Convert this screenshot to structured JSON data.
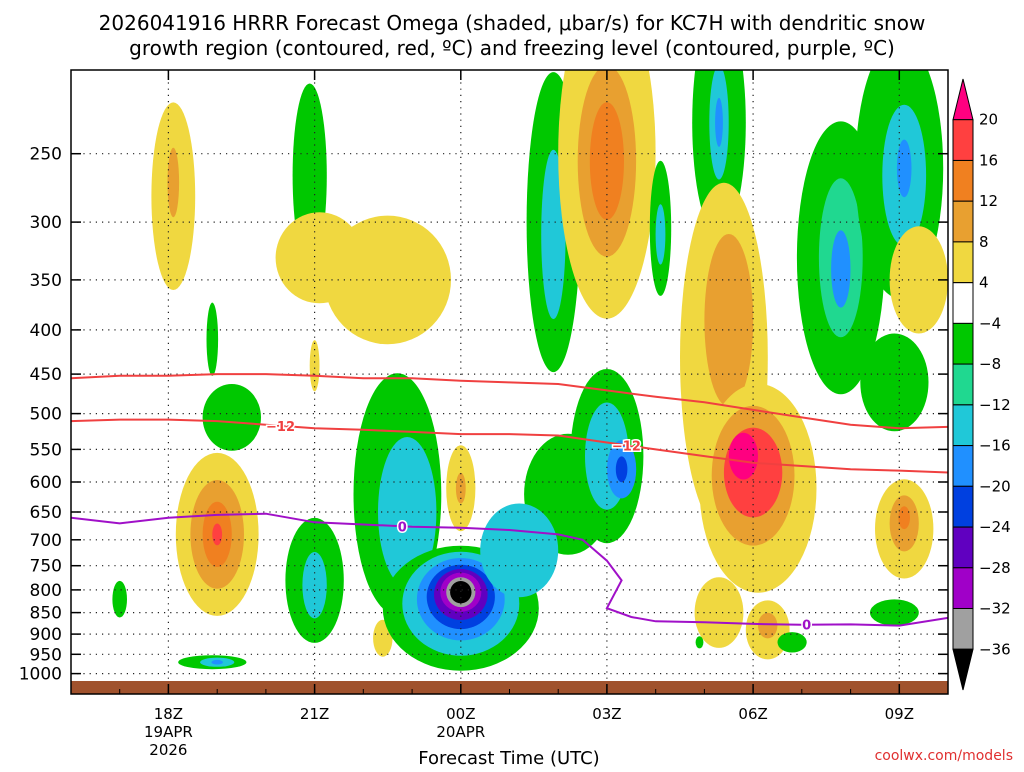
{
  "chart_data": {
    "type": "contour",
    "title_line1": "2026041916 HRRR Forecast Omega (shaded, μbar/s) for KC7H with dendritic snow",
    "title_line2": "growth region (contoured, red, ºC) and freezing level (contoured, purple, ºC)",
    "xlabel": "Forecast Time (UTC)",
    "credit": "coolwx.com/models",
    "x_ticks": [
      {
        "hour": 2,
        "label": "18Z",
        "sub1": "19APR",
        "sub2": "2026"
      },
      {
        "hour": 5,
        "label": "21Z",
        "sub1": "",
        "sub2": ""
      },
      {
        "hour": 8,
        "label": "00Z",
        "sub1": "20APR",
        "sub2": ""
      },
      {
        "hour": 11,
        "label": "03Z",
        "sub1": "",
        "sub2": ""
      },
      {
        "hour": 14,
        "label": "06Z",
        "sub1": "",
        "sub2": ""
      },
      {
        "hour": 17,
        "label": "09Z",
        "sub1": "",
        "sub2": ""
      }
    ],
    "x_range_hours": [
      0,
      18
    ],
    "y_levels_hpa": [
      250,
      300,
      350,
      400,
      450,
      500,
      550,
      600,
      650,
      700,
      750,
      800,
      850,
      900,
      950,
      1000
    ],
    "y_range_hpa": [
      200,
      1020
    ],
    "colorbar": {
      "labels": [
        "20",
        "16",
        "12",
        "8",
        "4",
        "−4",
        "−8",
        "−12",
        "−16",
        "−20",
        "−24",
        "−28",
        "−32",
        "−36"
      ],
      "colors": [
        "#ff0080",
        "#ff4040",
        "#f08020",
        "#e8a030",
        "#f0d840",
        "#ffffff",
        "#00c800",
        "#20d890",
        "#20c8d8",
        "#2090ff",
        "#0040e0",
        "#6000c0",
        "#a000c8",
        "#a0a0a0",
        "#000000"
      ]
    },
    "contours": [
      {
        "name": "dendritic-zone-top",
        "value": -18,
        "color": "#f04040",
        "points": [
          [
            0,
            455
          ],
          [
            1,
            452
          ],
          [
            2,
            452
          ],
          [
            3,
            450
          ],
          [
            4,
            450
          ],
          [
            5,
            452
          ],
          [
            6,
            455
          ],
          [
            7,
            455
          ],
          [
            8,
            458
          ],
          [
            9,
            460
          ],
          [
            10,
            462
          ],
          [
            11,
            470
          ],
          [
            12,
            478
          ],
          [
            13,
            485
          ],
          [
            14,
            495
          ],
          [
            15,
            505
          ],
          [
            16,
            515
          ],
          [
            17,
            520
          ],
          [
            18,
            518
          ]
        ]
      },
      {
        "name": "dendritic-zone-bottom",
        "value": -12,
        "color": "#f04040",
        "label": "−12",
        "points": [
          [
            0,
            510
          ],
          [
            1,
            508
          ],
          [
            2,
            508
          ],
          [
            3,
            510
          ],
          [
            4,
            515
          ],
          [
            5,
            520
          ],
          [
            6,
            522
          ],
          [
            7,
            525
          ],
          [
            8,
            528
          ],
          [
            9,
            528
          ],
          [
            10,
            530
          ],
          [
            11,
            540
          ],
          [
            12,
            550
          ],
          [
            13,
            560
          ],
          [
            14,
            570
          ],
          [
            15,
            575
          ],
          [
            16,
            580
          ],
          [
            17,
            582
          ],
          [
            18,
            585
          ]
        ]
      },
      {
        "name": "freezing-level",
        "value": 0,
        "color": "#a010c8",
        "label": "0",
        "points": [
          [
            0,
            660
          ],
          [
            1,
            670
          ],
          [
            2,
            660
          ],
          [
            3,
            655
          ],
          [
            4,
            653
          ],
          [
            5,
            668
          ],
          [
            6,
            672
          ],
          [
            7,
            676
          ],
          [
            8,
            678
          ],
          [
            9,
            682
          ],
          [
            10,
            690
          ],
          [
            10.5,
            700
          ],
          [
            11,
            740
          ],
          [
            11.3,
            780
          ],
          [
            11,
            840
          ],
          [
            11.5,
            860
          ],
          [
            12,
            870
          ],
          [
            13,
            872
          ],
          [
            14,
            876
          ],
          [
            15,
            878
          ],
          [
            16,
            877
          ],
          [
            17,
            880
          ],
          [
            18,
            862
          ]
        ]
      }
    ],
    "blobs": [
      {
        "name": "omega-cell-18z-upper-sink",
        "t": 6.5,
        "p": 350,
        "rx": 1.3,
        "ry": 60,
        "value": 4
      },
      {
        "name": "omega-cell-18z-snow",
        "t": 2.1,
        "p": 280,
        "rx": 0.45,
        "ry": 70,
        "value": 4
      },
      {
        "name": "omega-cell-18z-dn",
        "t": 2.1,
        "p": 270,
        "rx": 0.12,
        "ry": 25,
        "value": 10
      },
      {
        "name": "omega-cell-2030z-up",
        "t": 4.9,
        "p": 265,
        "rx": 0.35,
        "ry": 65,
        "value": -6
      },
      {
        "name": "omega-cell-upper-fill",
        "t": 5.1,
        "p": 330,
        "rx": 0.9,
        "ry": 40,
        "value": 4
      },
      {
        "name": "omega-cell-1930z-sliver",
        "t": 2.9,
        "p": 410,
        "rx": 0.12,
        "ry": 40,
        "value": -6
      },
      {
        "name": "omega-cell-2030z-sliver",
        "t": 5.0,
        "p": 440,
        "rx": 0.1,
        "ry": 30,
        "value": 4
      },
      {
        "name": "omega-cell-0130z-up",
        "t": 9.9,
        "p": 300,
        "rx": 0.55,
        "ry": 120,
        "value": -6
      },
      {
        "name": "omega-cell-0130z-core",
        "t": 9.9,
        "p": 310,
        "rx": 0.25,
        "ry": 70,
        "value": -14
      },
      {
        "name": "omega-cell-0230z-dn",
        "t": 11,
        "p": 250,
        "rx": 1.0,
        "ry": 110,
        "value": 4
      },
      {
        "name": "omega-cell-0230z-dn-core",
        "t": 11,
        "p": 255,
        "rx": 0.6,
        "ry": 65,
        "value": 10
      },
      {
        "name": "omega-cell-0230z-dn-peak",
        "t": 11,
        "p": 255,
        "rx": 0.35,
        "ry": 40,
        "value": 14
      },
      {
        "name": "omega-cell-0330z-up",
        "t": 12.1,
        "p": 305,
        "rx": 0.22,
        "ry": 55,
        "value": -6
      },
      {
        "name": "omega-cell-0330z-core",
        "t": 12.1,
        "p": 310,
        "rx": 0.1,
        "ry": 25,
        "value": -14
      },
      {
        "name": "omega-cell-0430z-up",
        "t": 13.3,
        "p": 230,
        "rx": 0.55,
        "ry": 70,
        "value": -6
      },
      {
        "name": "omega-cell-0430z-core",
        "t": 13.3,
        "p": 230,
        "rx": 0.2,
        "ry": 35,
        "value": -14
      },
      {
        "name": "omega-cell-0430z-peak",
        "t": 13.3,
        "p": 230,
        "rx": 0.08,
        "ry": 15,
        "value": -18
      },
      {
        "name": "omega-cell-0700z-up",
        "t": 15.8,
        "p": 330,
        "rx": 0.9,
        "ry": 120,
        "value": -6
      },
      {
        "name": "omega-cell-0700z-core",
        "t": 15.8,
        "p": 330,
        "rx": 0.45,
        "ry": 70,
        "value": -10
      },
      {
        "name": "omega-cell-0700z-peak",
        "t": 15.8,
        "p": 340,
        "rx": 0.2,
        "ry": 35,
        "value": -16
      },
      {
        "name": "omega-cell-0830z-up",
        "t": 17,
        "p": 260,
        "rx": 0.9,
        "ry": 90,
        "value": -6
      },
      {
        "name": "omega-cell-0830z-core",
        "t": 17.1,
        "p": 265,
        "rx": 0.45,
        "ry": 50,
        "value": -12
      },
      {
        "name": "omega-cell-0830z-peak",
        "t": 17.1,
        "p": 260,
        "rx": 0.15,
        "ry": 20,
        "value": -16
      },
      {
        "name": "omega-cell-0900z-mid-dn",
        "t": 17.4,
        "p": 350,
        "rx": 0.6,
        "ry": 50,
        "value": 4
      },
      {
        "name": "omega-cell-0830z-mid-up",
        "t": 16.9,
        "p": 460,
        "rx": 0.7,
        "ry": 60,
        "value": -6
      },
      {
        "name": "omega-cell-0530z-dn-tall",
        "t": 13.4,
        "p": 430,
        "rx": 0.9,
        "ry": 200,
        "value": 4
      },
      {
        "name": "omega-cell-0530z-dn-mid",
        "t": 13.5,
        "p": 390,
        "rx": 0.5,
        "ry": 90,
        "value": 10
      },
      {
        "name": "omega-cell-0600z-dn",
        "t": 14.1,
        "p": 610,
        "rx": 1.2,
        "ry": 170,
        "value": 4
      },
      {
        "name": "omega-cell-0600z-dn-mid",
        "t": 14,
        "p": 590,
        "rx": 0.85,
        "ry": 110,
        "value": 10
      },
      {
        "name": "omega-cell-0600z-dn-strong",
        "t": 14,
        "p": 585,
        "rx": 0.6,
        "ry": 70,
        "value": 16
      },
      {
        "name": "omega-cell-0600z-dn-peak",
        "t": 13.8,
        "p": 560,
        "rx": 0.3,
        "ry": 35,
        "value": 20
      },
      {
        "name": "omega-cell-0530z-low-dn",
        "t": 13.3,
        "p": 850,
        "rx": 0.5,
        "ry": 80,
        "value": 4
      },
      {
        "name": "omega-cell-0630z-low-dn",
        "t": 14.3,
        "p": 890,
        "rx": 0.45,
        "ry": 70,
        "value": 4
      },
      {
        "name": "omega-cell-0630z-low-core",
        "t": 14.3,
        "p": 880,
        "rx": 0.2,
        "ry": 30,
        "value": 10
      },
      {
        "name": "omega-cell-0900z-dn",
        "t": 17.1,
        "p": 680,
        "rx": 0.6,
        "ry": 90,
        "value": 4
      },
      {
        "name": "omega-cell-0900z-dn-core",
        "t": 17.1,
        "p": 670,
        "rx": 0.3,
        "ry": 50,
        "value": 10
      },
      {
        "name": "omega-cell-0900z-dn-peak",
        "t": 17.1,
        "p": 660,
        "rx": 0.12,
        "ry": 20,
        "value": 14
      },
      {
        "name": "omega-cell-0830z-low-up",
        "t": 16.9,
        "p": 850,
        "rx": 0.5,
        "ry": 30,
        "value": -6
      },
      {
        "name": "omega-cell-0700z-low-up",
        "t": 14.8,
        "p": 920,
        "rx": 0.3,
        "ry": 25,
        "value": -6
      },
      {
        "name": "omega-cell-0600z-tiny-up",
        "t": 12.9,
        "p": 920,
        "rx": 0.08,
        "ry": 15,
        "value": -6
      },
      {
        "name": "omega-cell-19z-dn",
        "t": 3,
        "p": 690,
        "rx": 0.85,
        "ry": 150,
        "value": 4
      },
      {
        "name": "omega-cell-19z-dn-mid",
        "t": 3,
        "p": 690,
        "rx": 0.55,
        "ry": 100,
        "value": 10
      },
      {
        "name": "omega-cell-19z-dn-strong",
        "t": 3,
        "p": 690,
        "rx": 0.3,
        "ry": 60,
        "value": 14
      },
      {
        "name": "omega-cell-19z-dn-peak",
        "t": 3,
        "p": 690,
        "rx": 0.1,
        "ry": 20,
        "value": 18
      },
      {
        "name": "omega-cell-1730z-up",
        "t": 1,
        "p": 820,
        "rx": 0.15,
        "ry": 40,
        "value": -6
      },
      {
        "name": "omega-cell-1930z-up",
        "t": 3.3,
        "p": 505,
        "rx": 0.6,
        "ry": 45,
        "value": -6
      },
      {
        "name": "omega-cell-19z-sfc-up",
        "t": 2.9,
        "p": 970,
        "rx": 0.7,
        "ry": 18,
        "value": -6
      },
      {
        "name": "omega-cell-19z-sfc-core",
        "t": 3,
        "p": 970,
        "rx": 0.35,
        "ry": 12,
        "value": -12
      },
      {
        "name": "omega-cell-19z-sfc-peak",
        "t": 3,
        "p": 970,
        "rx": 0.12,
        "ry": 6,
        "value": -18
      },
      {
        "name": "omega-cell-2130z-up",
        "t": 5,
        "p": 780,
        "rx": 0.6,
        "ry": 130,
        "value": -6
      },
      {
        "name": "omega-cell-2130z-core",
        "t": 5,
        "p": 790,
        "rx": 0.25,
        "ry": 70,
        "value": -12
      },
      {
        "name": "omega-cell-2230z-dn",
        "t": 6.4,
        "p": 910,
        "rx": 0.2,
        "ry": 45,
        "value": 4
      },
      {
        "name": "omega-cell-2300z-up-tall",
        "t": 6.7,
        "p": 620,
        "rx": 0.9,
        "ry": 200,
        "value": -6
      },
      {
        "name": "omega-cell-2300z-up-core",
        "t": 6.9,
        "p": 650,
        "rx": 0.6,
        "ry": 130,
        "value": -12
      },
      {
        "name": "omega-cell-0000z-up-base",
        "t": 8,
        "p": 840,
        "rx": 1.6,
        "ry": 140,
        "value": -6
      },
      {
        "name": "omega-cell-0000z-up-a",
        "t": 8,
        "p": 830,
        "rx": 1.2,
        "ry": 115,
        "value": -12
      },
      {
        "name": "omega-cell-0000z-up-b",
        "t": 8,
        "p": 820,
        "rx": 0.9,
        "ry": 90,
        "value": -16
      },
      {
        "name": "omega-cell-0000z-up-c",
        "t": 8,
        "p": 815,
        "rx": 0.7,
        "ry": 70,
        "value": -20
      },
      {
        "name": "omega-cell-0000z-up-d",
        "t": 8,
        "p": 810,
        "rx": 0.55,
        "ry": 55,
        "value": -24
      },
      {
        "name": "omega-cell-0000z-up-e",
        "t": 8,
        "p": 805,
        "rx": 0.42,
        "ry": 42,
        "value": -28
      },
      {
        "name": "omega-cell-0000z-up-f",
        "t": 8,
        "p": 805,
        "rx": 0.3,
        "ry": 32,
        "value": -32
      },
      {
        "name": "omega-cell-0000z-up-g",
        "t": 8,
        "p": 805,
        "rx": 0.22,
        "ry": 24,
        "value": -36
      },
      {
        "name": "omega-cell-0000z-up-h",
        "t": 8,
        "p": 805,
        "rx": 0.12,
        "ry": 14,
        "value": -40
      },
      {
        "name": "omega-cell-0000z-dn-mid",
        "t": 8,
        "p": 610,
        "rx": 0.3,
        "ry": 70,
        "value": 4
      },
      {
        "name": "omega-cell-0000z-dn-core",
        "t": 8,
        "p": 610,
        "rx": 0.1,
        "ry": 25,
        "value": 10
      },
      {
        "name": "omega-cell-0200z-up-arm",
        "t": 10.2,
        "p": 620,
        "rx": 0.9,
        "ry": 100,
        "value": -6
      },
      {
        "name": "omega-cell-0230z-up-arm",
        "t": 11,
        "p": 560,
        "rx": 0.75,
        "ry": 130,
        "value": -6
      },
      {
        "name": "omega-cell-0230z-up-core",
        "t": 11,
        "p": 560,
        "rx": 0.45,
        "ry": 80,
        "value": -12
      },
      {
        "name": "omega-cell-0300z-up-core",
        "t": 11.3,
        "p": 580,
        "rx": 0.3,
        "ry": 45,
        "value": -16
      },
      {
        "name": "omega-cell-0300z-up-peak",
        "t": 11.3,
        "p": 580,
        "rx": 0.12,
        "ry": 20,
        "value": -20
      },
      {
        "name": "omega-cell-0100z-up-arm",
        "t": 9.2,
        "p": 720,
        "rx": 0.8,
        "ry": 90,
        "value": -12
      }
    ]
  }
}
